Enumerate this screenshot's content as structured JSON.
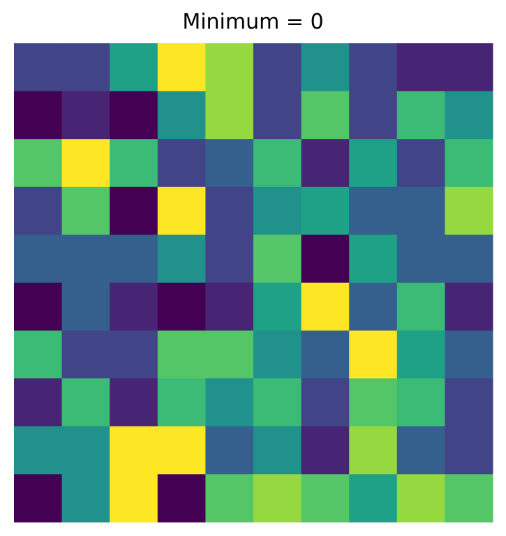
{
  "chart_data": {
    "type": "heatmap",
    "title": "Minimum = 0",
    "xlabel": "",
    "ylabel": "",
    "colormap": "viridis",
    "vmin": 0,
    "vmax": 9,
    "grid": false,
    "rows": 10,
    "cols": 10,
    "values": [
      [
        2,
        2,
        5,
        9,
        8,
        2,
        4,
        2,
        1,
        1
      ],
      [
        0,
        1,
        0,
        4,
        8,
        2,
        7,
        2,
        6,
        4
      ],
      [
        7,
        9,
        6,
        2,
        3,
        6,
        1,
        5,
        2,
        6
      ],
      [
        2,
        7,
        0,
        9,
        2,
        4,
        5,
        3,
        3,
        8
      ],
      [
        3,
        3,
        3,
        4,
        2,
        7,
        0,
        5,
        3,
        3
      ],
      [
        0,
        3,
        1,
        0,
        1,
        5,
        9,
        3,
        6,
        1
      ],
      [
        6,
        2,
        2,
        7,
        7,
        4,
        3,
        9,
        5,
        3
      ],
      [
        1,
        6,
        1,
        6,
        4,
        6,
        2,
        7,
        6,
        2
      ],
      [
        4,
        4,
        9,
        9,
        3,
        4,
        1,
        8,
        3,
        2
      ],
      [
        0,
        4,
        9,
        0,
        7,
        8,
        7,
        5,
        8,
        7
      ]
    ]
  }
}
